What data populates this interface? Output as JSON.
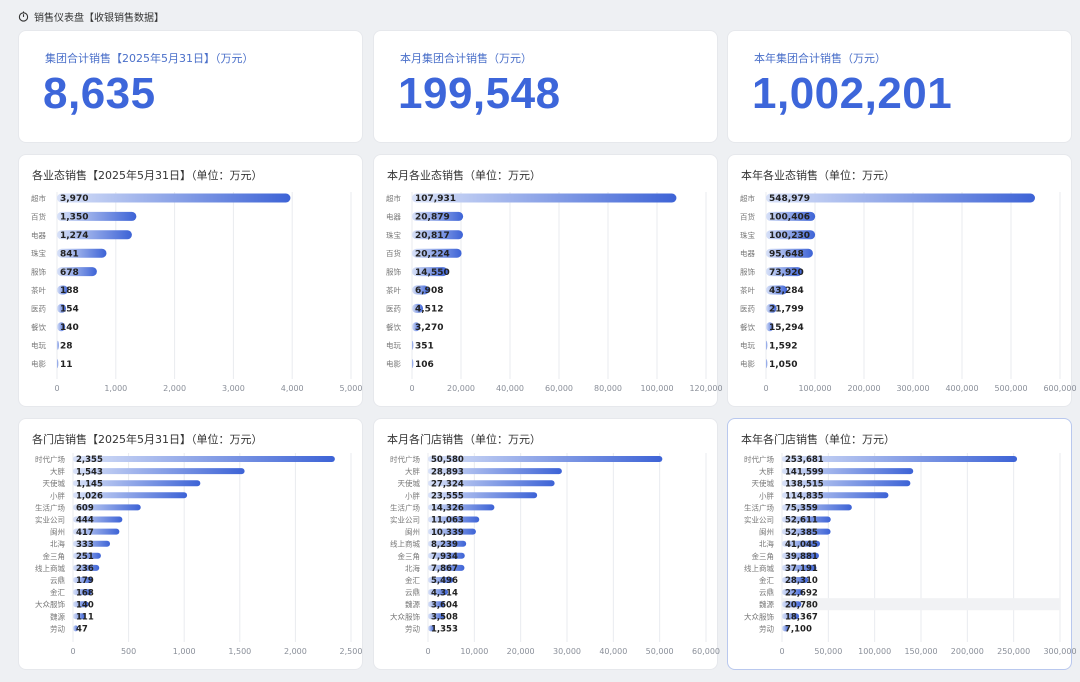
{
  "header": {
    "title": "销售仪表盘【收银销售数据】",
    "icon": "dashboard-icon"
  },
  "colors": {
    "accent": "#3d66da",
    "bar_start": "#d9e2f8",
    "bar_end": "#3d63d6",
    "grid": "#e9ebef",
    "axis_text": "#8a8f99"
  },
  "kpis": [
    {
      "label": "集团合计销售【2025年5月31日】（万元）",
      "value": "8,635"
    },
    {
      "label": "本月集团合计销售（万元）",
      "value": "199,548"
    },
    {
      "label": "本年集团合计销售（万元）",
      "value": "1,002,201"
    }
  ],
  "chart_data": [
    {
      "type": "bar",
      "orientation": "horizontal",
      "title": "各业态销售【2025年5月31日】（单位：万元）",
      "categories": [
        "超市",
        "百货",
        "电器",
        "珠宝",
        "服饰",
        "茶叶",
        "医药",
        "餐饮",
        "电玩",
        "电影"
      ],
      "values": [
        3970,
        1350,
        1274,
        841,
        678,
        188,
        154,
        140,
        28,
        11
      ],
      "labels": [
        "3,970",
        "1,350",
        "1,274",
        "841",
        "678",
        "188",
        "154",
        "140",
        "28",
        "11"
      ],
      "xlim": [
        0,
        5000
      ],
      "ticks": [
        0,
        1000,
        2000,
        3000,
        4000,
        5000
      ],
      "tick_labels": [
        "0",
        "1,000",
        "2,000",
        "3,000",
        "4,000",
        "5,000"
      ],
      "grid": true
    },
    {
      "type": "bar",
      "orientation": "horizontal",
      "title": "本月各业态销售（单位：万元）",
      "categories": [
        "超市",
        "电器",
        "珠宝",
        "百货",
        "服饰",
        "茶叶",
        "医药",
        "餐饮",
        "电玩",
        "电影"
      ],
      "values": [
        107931,
        20879,
        20817,
        20224,
        14550,
        6908,
        4512,
        3270,
        351,
        106
      ],
      "labels": [
        "107,931",
        "20,879",
        "20,817",
        "20,224",
        "14,550",
        "6,908",
        "4,512",
        "3,270",
        "351",
        "106"
      ],
      "xlim": [
        0,
        120000
      ],
      "ticks": [
        0,
        20000,
        40000,
        60000,
        80000,
        100000,
        120000
      ],
      "tick_labels": [
        "0",
        "20,000",
        "40,000",
        "60,000",
        "80,000",
        "100,000",
        "120,000"
      ],
      "grid": true
    },
    {
      "type": "bar",
      "orientation": "horizontal",
      "title": "本年各业态销售（单位：万元）",
      "categories": [
        "超市",
        "百货",
        "珠宝",
        "电器",
        "服饰",
        "茶叶",
        "医药",
        "餐饮",
        "电玩",
        "电影"
      ],
      "values": [
        548979,
        100406,
        100230,
        95648,
        73920,
        43284,
        21799,
        15294,
        1592,
        1050
      ],
      "labels": [
        "548,979",
        "100,406",
        "100,230",
        "95,648",
        "73,920",
        "43,284",
        "21,799",
        "15,294",
        "1,592",
        "1,050"
      ],
      "xlim": [
        0,
        600000
      ],
      "ticks": [
        0,
        100000,
        200000,
        300000,
        400000,
        500000,
        600000
      ],
      "tick_labels": [
        "0",
        "100,000",
        "200,000",
        "300,000",
        "400,000",
        "500,000",
        "600,000"
      ],
      "grid": true
    },
    {
      "type": "bar",
      "orientation": "horizontal",
      "title": "各门店销售【2025年5月31日】（单位：万元）",
      "categories": [
        "时代广场",
        "大胖",
        "天使城",
        "小胖",
        "生活广场",
        "实业公司",
        "闽州",
        "北海",
        "金三角",
        "线上商城",
        "云鼎",
        "金汇",
        "大众服饰",
        "魏源",
        "劳动"
      ],
      "values": [
        2355,
        1543,
        1145,
        1026,
        609,
        444,
        417,
        333,
        251,
        236,
        179,
        168,
        140,
        111,
        47
      ],
      "labels": [
        "2,355",
        "1,543",
        "1,145",
        "1,026",
        "609",
        "444",
        "417",
        "333",
        "251",
        "236",
        "179",
        "168",
        "140",
        "111",
        "47"
      ],
      "xlim": [
        0,
        2500
      ],
      "ticks": [
        0,
        500,
        1000,
        1500,
        2000,
        2500
      ],
      "tick_labels": [
        "0",
        "500",
        "1,000",
        "1,500",
        "2,000",
        "2,500"
      ],
      "grid": true
    },
    {
      "type": "bar",
      "orientation": "horizontal",
      "title": "本月各门店销售（单位：万元）",
      "categories": [
        "时代广场",
        "大胖",
        "天使城",
        "小胖",
        "生活广场",
        "实业公司",
        "闽州",
        "线上商城",
        "金三角",
        "北海",
        "金汇",
        "云鼎",
        "魏源",
        "大众服饰",
        "劳动"
      ],
      "values": [
        50580,
        28893,
        27324,
        23555,
        14326,
        11063,
        10339,
        8239,
        7934,
        7867,
        5496,
        4314,
        3604,
        3508,
        1353
      ],
      "labels": [
        "50,580",
        "28,893",
        "27,324",
        "23,555",
        "14,326",
        "11,063",
        "10,339",
        "8,239",
        "7,934",
        "7,867",
        "5,496",
        "4,314",
        "3,604",
        "3,508",
        "1,353"
      ],
      "xlim": [
        0,
        60000
      ],
      "ticks": [
        0,
        10000,
        20000,
        30000,
        40000,
        50000,
        60000
      ],
      "tick_labels": [
        "0",
        "10,000",
        "20,000",
        "30,000",
        "40,000",
        "50,000",
        "60,000"
      ],
      "grid": true
    },
    {
      "type": "bar",
      "orientation": "horizontal",
      "title": "本年各门店销售（单位：万元）",
      "categories": [
        "时代广场",
        "大胖",
        "天使城",
        "小胖",
        "生活广场",
        "实业公司",
        "闽州",
        "北海",
        "金三角",
        "线上商城",
        "金汇",
        "云鼎",
        "魏源",
        "大众服饰",
        "劳动"
      ],
      "values": [
        253681,
        141599,
        138515,
        114835,
        75359,
        52611,
        52385,
        41045,
        39881,
        37191,
        28310,
        22692,
        20780,
        18367,
        7100
      ],
      "labels": [
        "253,681",
        "141,599",
        "138,515",
        "114,835",
        "75,359",
        "52,611",
        "52,385",
        "41,045",
        "39,881",
        "37,191",
        "28,310",
        "22,692",
        "20,780",
        "18,367",
        "7,100"
      ],
      "xlim": [
        0,
        300000
      ],
      "ticks": [
        0,
        50000,
        100000,
        150000,
        200000,
        250000,
        300000
      ],
      "tick_labels": [
        "0",
        "50,000",
        "100,000",
        "150,000",
        "200,000",
        "250,000",
        "300,000"
      ],
      "grid": true,
      "highlighted_category": "魏源"
    }
  ]
}
